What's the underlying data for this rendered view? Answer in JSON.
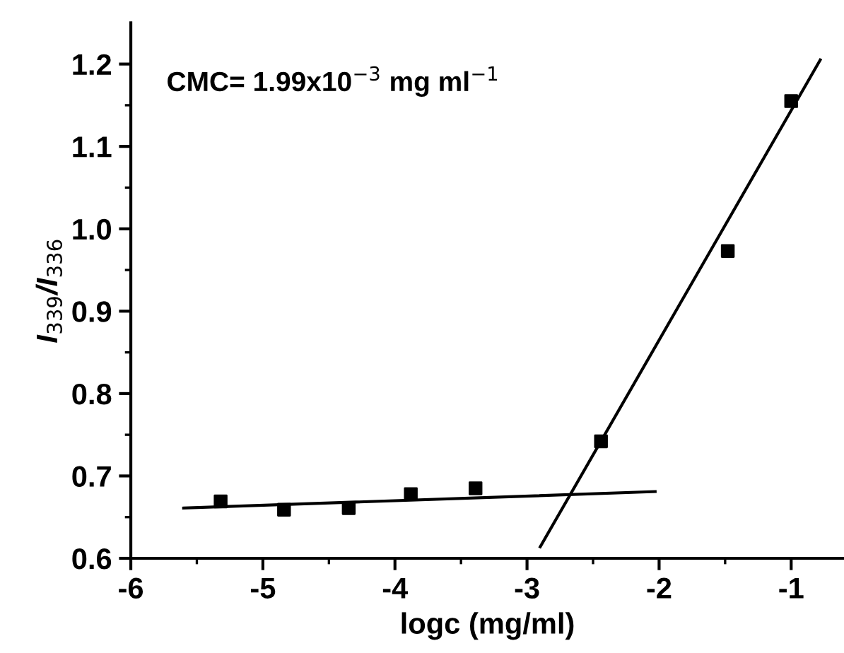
{
  "chart_data": {
    "type": "scatter",
    "xlabel": "logc (mg/ml)",
    "ylabel": "I$_{339}$/I$_{336}$",
    "annotations": [
      "CMC= 1.99x10$^{−3}$ mg ml$^{−1}$"
    ],
    "grid": false,
    "xlim": [
      -6,
      -0.6
    ],
    "ylim": [
      0.6,
      1.25
    ],
    "xticks": [
      -6,
      {
        "value": -5.5,
        "label": null
      },
      -5,
      {
        "value": -4.5,
        "label": null
      },
      -4,
      {
        "value": -3.5,
        "label": null
      },
      -3,
      {
        "value": -2.5,
        "label": null
      },
      -2,
      {
        "value": -1.5,
        "label": null
      },
      -1
    ],
    "yticks": [
      0.6,
      {
        "value": 0.65,
        "label": null
      },
      0.7,
      {
        "value": 0.75,
        "label": null
      },
      0.8,
      {
        "value": 0.85,
        "label": null
      },
      0.9,
      {
        "value": 0.95,
        "label": null
      },
      {
        "value": 1.0,
        "label": "1.0"
      },
      {
        "value": 1.05,
        "label": null
      },
      1.1,
      {
        "value": 1.15,
        "label": null
      },
      1.2
    ],
    "series": [
      {
        "marker": "square",
        "color": "#000000",
        "x": [
          -5.32,
          -4.84,
          -4.35,
          -3.88,
          -3.39,
          -2.44,
          -1.48,
          -1.0
        ],
        "values": [
          0.669,
          0.659,
          0.661,
          0.678,
          0.685,
          0.742,
          0.973,
          1.155
        ]
      },
      {
        "type": "line",
        "marker": "none",
        "color": "#000000",
        "x": [
          -5.6,
          -2.03
        ],
        "values": [
          0.661,
          0.681
        ]
      },
      {
        "type": "line",
        "marker": "none",
        "color": "#000000",
        "x": [
          -2.9,
          -0.78
        ],
        "values": [
          0.614,
          1.205
        ]
      }
    ]
  }
}
